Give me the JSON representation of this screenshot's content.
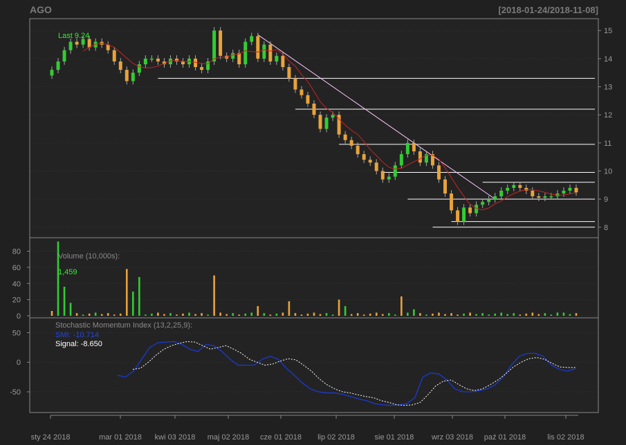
{
  "chart_data": {
    "type": "candlestick",
    "symbol": "AGO",
    "date_range": "[2018-01-24/2018-11-08]",
    "x_ticks": [
      "sty 24 2018",
      "mar 01 2018",
      "kwi 03 2018",
      "maj 02 2018",
      "cze 01 2018",
      "lip 02 2018",
      "sie 01 2018",
      "wrz 03 2018",
      "paź 01 2018",
      "lis 02 2018"
    ],
    "price_panel": {
      "last_label": "Last 9.24",
      "y_ticks": [
        8,
        9,
        10,
        11,
        12,
        13,
        14,
        15
      ],
      "ylim": [
        7.7,
        15.35
      ],
      "close": [
        13.6,
        13.9,
        14.3,
        14.6,
        14.5,
        14.7,
        14.4,
        14.6,
        14.5,
        14.3,
        13.9,
        13.6,
        13.2,
        13.5,
        13.8,
        14.0,
        14.0,
        13.9,
        13.8,
        14.0,
        13.9,
        13.8,
        14.0,
        13.7,
        13.6,
        13.9,
        15.0,
        14.1,
        14.0,
        14.2,
        13.8,
        14.6,
        14.8,
        14.0,
        14.5,
        13.9,
        14.1,
        13.7,
        13.3,
        12.9,
        12.7,
        12.4,
        12.0,
        11.5,
        11.9,
        12.0,
        11.3,
        11.1,
        10.9,
        10.6,
        10.4,
        10.3,
        10.0,
        9.7,
        9.8,
        10.2,
        10.6,
        11.0,
        10.7,
        10.3,
        10.6,
        10.2,
        9.7,
        9.2,
        8.6,
        8.2,
        8.7,
        8.5,
        8.8,
        8.9,
        9.0,
        9.1,
        9.3,
        9.4,
        9.5,
        9.4,
        9.3,
        9.1,
        9.05,
        9.1,
        9.1,
        9.2,
        9.3,
        9.4,
        9.24
      ],
      "sma_label": "",
      "horizontal_lines": [
        {
          "value": 13.3,
          "from_index": 17
        },
        {
          "value": 12.2,
          "from_index": 39
        },
        {
          "value": 10.95,
          "from_index": 46
        },
        {
          "value": 9.95,
          "from_index": 53
        },
        {
          "value": 9.6,
          "from_index": 69
        },
        {
          "value": 9.0,
          "from_index": 57
        },
        {
          "value": 8.2,
          "from_index": 64
        },
        {
          "value": 8.0,
          "from_index": 61
        }
      ],
      "trendline": {
        "from": [
          33,
          14.85
        ],
        "to": [
          71,
          9.0
        ]
      },
      "colors": {
        "up": "#33cc33",
        "down": "#e8a33a",
        "sma": "#cc2222",
        "hlines": "#ffffff",
        "trendline": "#ffc8ff"
      }
    },
    "volume_panel": {
      "label": "Volume (10,000s):",
      "last_value": "1,459",
      "y_ticks": [
        0,
        20,
        40,
        60,
        80
      ],
      "ylim": [
        0,
        95
      ],
      "spikes": [
        {
          "index": 1,
          "value": 92,
          "dir": "up"
        },
        {
          "index": 2,
          "value": 36,
          "dir": "up"
        },
        {
          "index": 3,
          "value": 16,
          "dir": "up"
        },
        {
          "index": 0,
          "value": 6,
          "dir": "down"
        },
        {
          "index": 12,
          "value": 58,
          "dir": "down"
        },
        {
          "index": 13,
          "value": 30,
          "dir": "up"
        },
        {
          "index": 14,
          "value": 48,
          "dir": "up"
        },
        {
          "index": 26,
          "value": 50,
          "dir": "down"
        },
        {
          "index": 33,
          "value": 12,
          "dir": "down"
        },
        {
          "index": 38,
          "value": 18,
          "dir": "down"
        },
        {
          "index": 46,
          "value": 20,
          "dir": "down"
        },
        {
          "index": 47,
          "value": 12,
          "dir": "up"
        },
        {
          "index": 56,
          "value": 24,
          "dir": "down"
        },
        {
          "index": 58,
          "value": 8,
          "dir": "up"
        },
        {
          "index": 81,
          "value": 4,
          "dir": "up"
        }
      ],
      "colors": {
        "up": "#33cc33",
        "down": "#e8a33a"
      }
    },
    "smi_panel": {
      "label": "Stochastic Momentum Index (13,2,25,9):",
      "smi_label": "SMI: -10.714",
      "signal_label": "Signal: -8.650",
      "y_ticks": [
        -50,
        0,
        50
      ],
      "ylim": [
        -85,
        75
      ],
      "smi": [
        -22,
        -25,
        -15,
        5,
        25,
        33,
        34,
        35,
        30,
        22,
        18,
        30,
        28,
        18,
        5,
        -5,
        -5,
        -5,
        5,
        10,
        5,
        -10,
        -22,
        -35,
        -45,
        -50,
        -52,
        -52,
        -54,
        -58,
        -62,
        -65,
        -70,
        -72,
        -73,
        -72,
        -70,
        -60,
        -25,
        -18,
        -20,
        -30,
        -45,
        -50,
        -50,
        -48,
        -45,
        -38,
        -25,
        -5,
        10,
        15,
        15,
        10,
        -5,
        -12,
        -15,
        -11
      ],
      "signal": [
        -12,
        -10,
        0,
        12,
        22,
        28,
        32,
        35,
        34,
        28,
        22,
        25,
        28,
        22,
        15,
        5,
        0,
        -5,
        -3,
        2,
        6,
        4,
        -5,
        -15,
        -28,
        -38,
        -45,
        -50,
        -52,
        -55,
        -58,
        -60,
        -65,
        -68,
        -72,
        -73,
        -72,
        -68,
        -55,
        -40,
        -32,
        -30,
        -38,
        -45,
        -48,
        -45,
        -38,
        -30,
        -20,
        -8,
        0,
        6,
        8,
        5,
        -2,
        -8,
        -9,
        -9
      ],
      "colors": {
        "smi": "#1a3ad8",
        "signal": "#ffffff"
      }
    }
  }
}
